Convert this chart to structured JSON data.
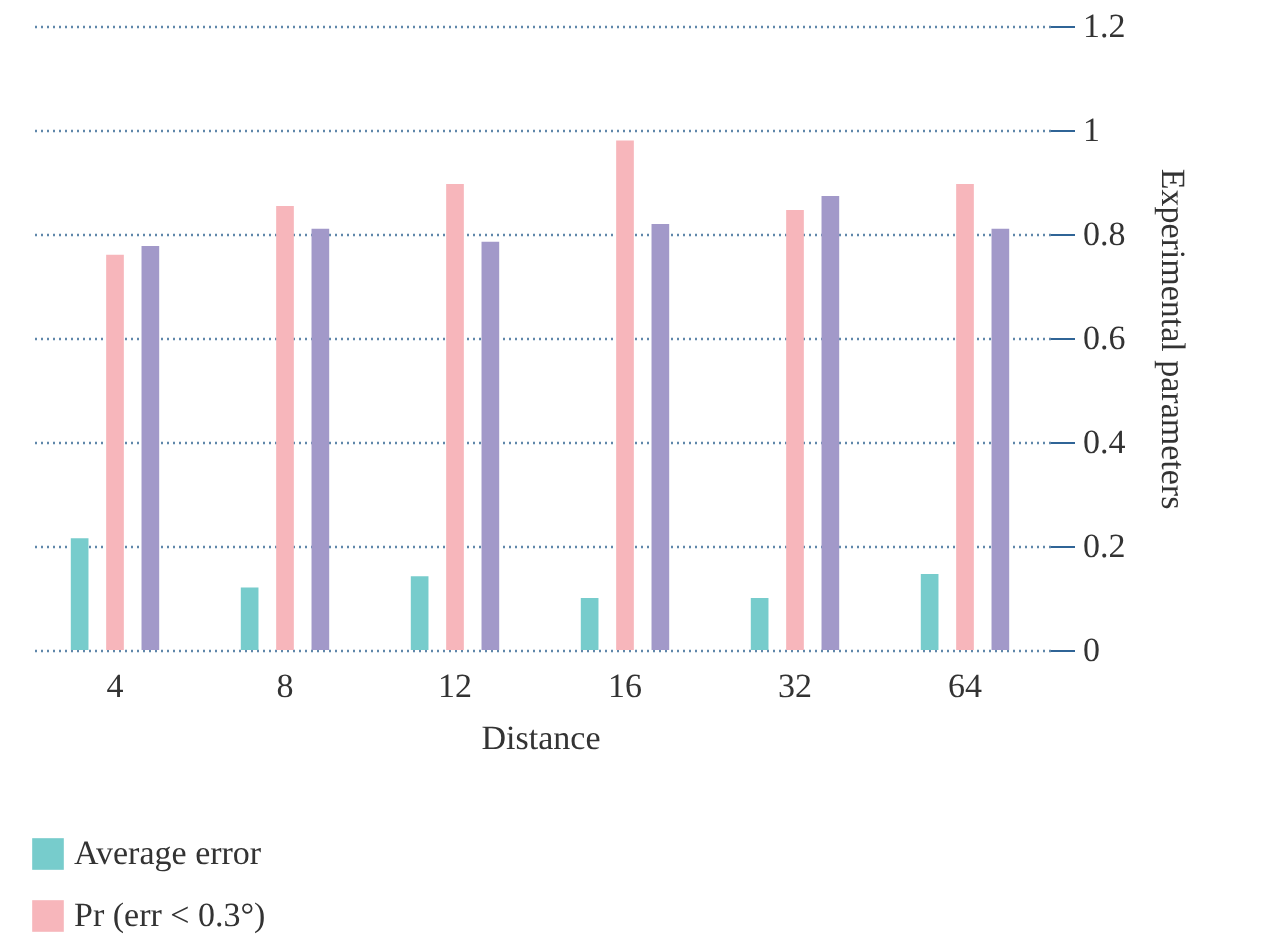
{
  "chart_data": {
    "type": "bar",
    "xlabel": "Distance",
    "ylabel": "Experimental parameters",
    "categories": [
      "4",
      "8",
      "12",
      "16",
      "32",
      "64"
    ],
    "series": [
      {
        "name": "Average error",
        "color": "#77cccc",
        "values": [
          0.215,
          0.12,
          0.142,
          0.1,
          0.1,
          0.146
        ]
      },
      {
        "name": "Pr (err < 0.3°)",
        "color": "#f7b6bb",
        "values": [
          0.76,
          0.854,
          0.896,
          0.98,
          0.846,
          0.896
        ]
      },
      {
        "color": "#a299c9",
        "values": [
          0.777,
          0.81,
          0.785,
          0.819,
          0.873,
          0.81
        ]
      }
    ],
    "ylim": [
      0,
      1.2
    ],
    "yticks": [
      0,
      0.2,
      0.4,
      0.6,
      0.8,
      1,
      1.2
    ],
    "grid": "y",
    "legend": "bottom left"
  }
}
